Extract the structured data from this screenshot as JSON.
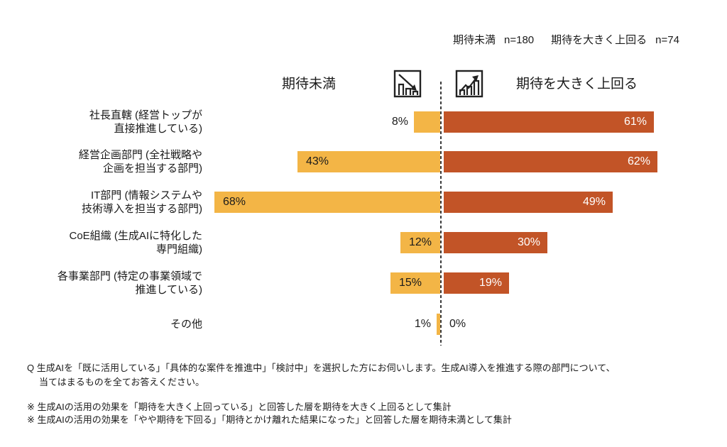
{
  "colors": {
    "below_bar": "#F3B546",
    "above_bar": "#C25427",
    "axis_line": "#3b3b3b",
    "text": "#1b1b1b",
    "pct_inside_left": "#1b1b1b",
    "pct_inside_right": "#ffffff"
  },
  "legend_top": {
    "below_label": "期待未満",
    "below_n": "n=180",
    "above_label": "期待を大きく上回る",
    "above_n": "n=74"
  },
  "header": {
    "below_label": "期待未満",
    "above_label": "期待を大きく上回る",
    "below_icon": "declining-bar-chart-icon",
    "above_icon": "rising-bar-chart-icon"
  },
  "chart_data": {
    "type": "bar",
    "variant": "diverging-horizontal",
    "unit": "%",
    "grid": false,
    "center_axis": "dashed-vertical-line",
    "series": [
      {
        "name": "期待未満",
        "side": "left",
        "color": "#F3B546",
        "n": 180
      },
      {
        "name": "期待を大きく上回る",
        "side": "right",
        "color": "#C25427",
        "n": 74
      }
    ],
    "categories": [
      {
        "label_lines": [
          "社長直轄 (経営トップが",
          "直接推進している)"
        ],
        "below": 8,
        "above": 61,
        "below_label": "8%",
        "above_label": "61%"
      },
      {
        "label_lines": [
          "経営企画部門 (全社戦略や",
          "企画を担当する部門)"
        ],
        "below": 43,
        "above": 62,
        "below_label": "43%",
        "above_label": "62%"
      },
      {
        "label_lines": [
          "IT部門 (情報システムや",
          "技術導入を担当する部門)"
        ],
        "below": 68,
        "above": 49,
        "below_label": "68%",
        "above_label": "49%"
      },
      {
        "label_lines": [
          "CoE組織 (生成AIに特化した",
          "専門組織)"
        ],
        "below": 12,
        "above": 30,
        "below_label": "12%",
        "above_label": "30%"
      },
      {
        "label_lines": [
          "各事業部門 (特定の事業領域で",
          "推進している)"
        ],
        "below": 15,
        "above": 19,
        "below_label": "15%",
        "above_label": "19%"
      },
      {
        "label_lines": [
          "その他"
        ],
        "below": 1,
        "above": 0,
        "below_label": "1%",
        "above_label": "0%"
      }
    ]
  },
  "footer": {
    "question_lines": [
      "Q 生成AIを「既に活用している」「具体的な案件を推進中」「検討中」を選択した方にお伺いします。生成AI導入を推進する際の部門について、",
      "当てはまるものを全てお答えください。"
    ],
    "notes": [
      "※ 生成AIの活用の効果を「期待を大きく上回っている」と回答した層を期待を大きく上回るとして集計",
      "※ 生成AIの活用の効果を「やや期待を下回る」「期待とかけ離れた結果になった」と回答した層を期待未満として集計"
    ]
  }
}
